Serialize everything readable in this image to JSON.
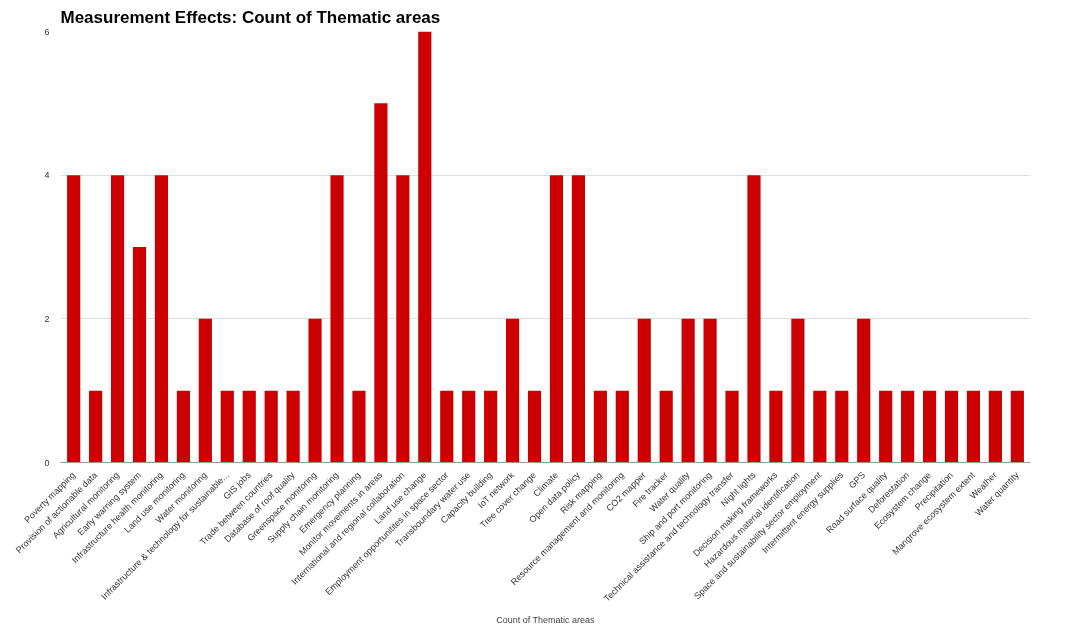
{
  "chart_data": {
    "type": "bar",
    "title": "Measurement Effects: Count of Thematic areas",
    "xlabel": "Count of Thematic areas",
    "categories": [
      "Poverty mapping",
      "Provision of actionable data",
      "Agricultural monitoring",
      "Early warning system",
      "Infrastructure health monitoring",
      "Land use monitoring",
      "Water monitoring",
      "Infrastructure & technology for sustainable...",
      "GIS jobs",
      "Trade between countries",
      "Database of roof quality",
      "Greenspace monitoring",
      "Supply chain monitoring",
      "Emergency planning",
      "Monitor movements in areas",
      "International and regional collaboration",
      "Land use change",
      "Employment opportunitites in space sector",
      "Transboundary water use",
      "Capacity building",
      "IoT network",
      "Tree cover change",
      "Climate",
      "Open data policy",
      "Risk mapping",
      "Resource management and monitoring",
      "CO2 mapper",
      "Fire tracker",
      "Water quality",
      "Ship and port monitoring",
      "Technical assistance and technology transfer",
      "Night lights",
      "Decision making frameworks",
      "Hazardous material identification",
      "Space and sustainability sector employment",
      "Intermittent energy supplies",
      "GPS",
      "Road surface quality",
      "Deforestation",
      "Ecosystem change",
      "Precipitation",
      "Mangrove ecosystem extent",
      "Weather",
      "Water quantity"
    ],
    "values": [
      4,
      1,
      4,
      3,
      4,
      1,
      2,
      1,
      1,
      1,
      1,
      2,
      4,
      1,
      5,
      4,
      6,
      1,
      1,
      1,
      2,
      1,
      4,
      4,
      1,
      1,
      2,
      1,
      2,
      2,
      1,
      4,
      1,
      2,
      1,
      1,
      2,
      1,
      1,
      1,
      1,
      1,
      1,
      1
    ],
    "color": "#cc0000",
    "ylim": [
      0,
      6
    ],
    "yticks": [
      0,
      2,
      4,
      6
    ],
    "grid": "y"
  }
}
